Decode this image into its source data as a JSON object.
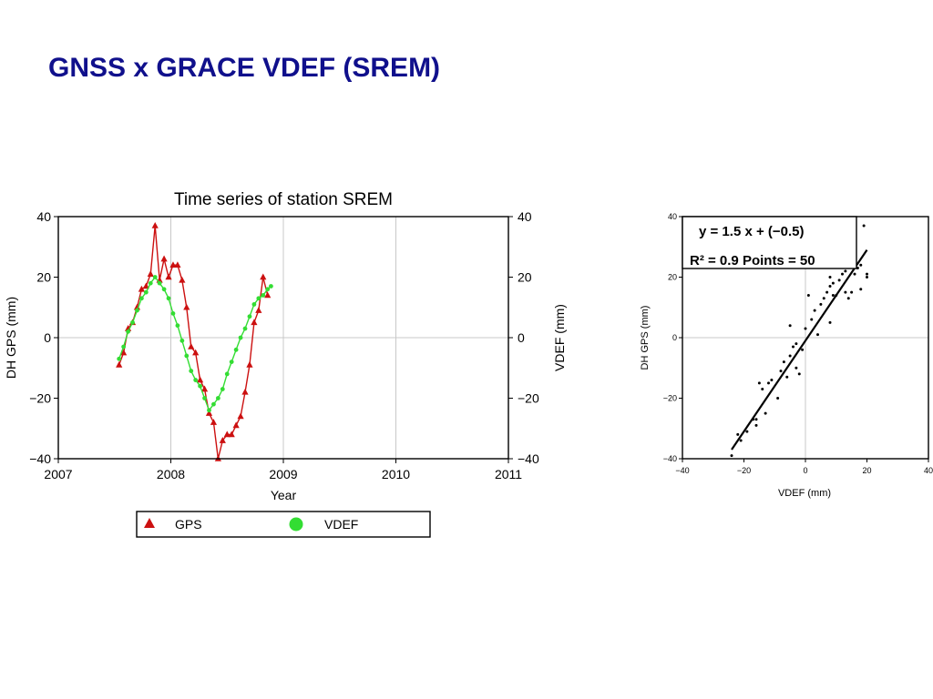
{
  "slide": {
    "title": "GNSS x GRACE VDEF (SREM)"
  },
  "chart_data": [
    {
      "type": "line",
      "title": "Time series of station SREM",
      "xlabel": "Year",
      "ylabel": "DH GPS (mm)",
      "ylabel_right": "VDEF  (mm)",
      "xlim": [
        2007,
        2011
      ],
      "ylim": [
        -40,
        40
      ],
      "xticks": [
        "2007",
        "2008",
        "2009",
        "2010",
        "2011"
      ],
      "yticks": [
        "40",
        "20",
        "0",
        "−20",
        "−40"
      ],
      "grid": true,
      "legend": {
        "position": "bottom",
        "entries": [
          "GPS",
          "VDEF"
        ]
      },
      "series": [
        {
          "name": "GPS",
          "marker": "triangle",
          "color": "#cc1010",
          "x": [
            2007.54,
            2007.58,
            2007.62,
            2007.66,
            2007.7,
            2007.74,
            2007.78,
            2007.82,
            2007.86,
            2007.9,
            2007.94,
            2007.98,
            2008.02,
            2008.06,
            2008.1,
            2008.14,
            2008.18,
            2008.22,
            2008.26,
            2008.3,
            2008.34,
            2008.38,
            2008.42,
            2008.46,
            2008.5,
            2008.54,
            2008.58,
            2008.62,
            2008.66,
            2008.7,
            2008.74,
            2008.78,
            2008.82,
            2008.86
          ],
          "y": [
            -9,
            -5,
            3,
            5,
            10,
            16,
            17,
            21,
            37,
            19,
            26,
            20,
            24,
            24,
            19,
            10,
            -3,
            -5,
            -14,
            -17,
            -25,
            -28,
            -40,
            -34,
            -32,
            -32,
            -29,
            -26,
            -18,
            -9,
            5,
            9,
            20,
            14
          ]
        },
        {
          "name": "VDEF",
          "marker": "circle",
          "color": "#33dd33",
          "x": [
            2007.54,
            2007.58,
            2007.62,
            2007.66,
            2007.7,
            2007.74,
            2007.78,
            2007.82,
            2007.86,
            2007.9,
            2007.94,
            2007.98,
            2008.02,
            2008.06,
            2008.1,
            2008.14,
            2008.18,
            2008.22,
            2008.26,
            2008.3,
            2008.34,
            2008.38,
            2008.42,
            2008.46,
            2008.5,
            2008.54,
            2008.58,
            2008.62,
            2008.66,
            2008.7,
            2008.74,
            2008.78,
            2008.82,
            2008.86,
            2008.89
          ],
          "y": [
            -7,
            -3,
            2,
            5,
            9,
            13,
            15,
            18,
            20,
            18,
            16,
            13,
            8,
            4,
            -1,
            -6,
            -11,
            -14,
            -16,
            -20,
            -24,
            -22,
            -20,
            -17,
            -12,
            -8,
            -4,
            0,
            3,
            7,
            11,
            13,
            14,
            16,
            17
          ]
        }
      ]
    },
    {
      "type": "scatter",
      "title": "",
      "xlabel": "VDEF  (mm)",
      "ylabel": "DH GPS (mm)",
      "xlim": [
        -40,
        40
      ],
      "ylim": [
        -40,
        40
      ],
      "xticks": [
        "−40",
        "−20",
        "0",
        "20",
        "40"
      ],
      "yticks": [
        "40",
        "20",
        "0",
        "−20",
        "−40"
      ],
      "grid": true,
      "annotation": {
        "equation": "y = 1.5 x + (−0.5)",
        "stats": "R² = 0.9  Points = 50"
      },
      "fit_line": {
        "x": [
          -24,
          20
        ],
        "y": [
          -37,
          29
        ]
      },
      "points": {
        "x": [
          -24,
          -22,
          -21,
          -19,
          -17,
          -16,
          -16,
          -15,
          -14,
          -13,
          -12,
          -11,
          -9,
          -8,
          -7,
          -6,
          -5,
          -5,
          -4,
          -3,
          -3,
          -2,
          -1,
          0,
          1,
          2,
          3,
          4,
          5,
          6,
          7,
          8,
          8,
          9,
          10,
          11,
          12,
          13,
          14,
          15,
          16,
          17,
          18,
          19,
          20,
          20,
          8,
          9,
          13,
          18
        ],
        "y": [
          -39,
          -32,
          -34,
          -31,
          -27,
          -29,
          -27,
          -15,
          -17,
          -25,
          -15,
          -14,
          -20,
          -11,
          -8,
          -13,
          -6,
          4,
          -3,
          -10,
          -2,
          -12,
          -4,
          3,
          14,
          6,
          9,
          1,
          11,
          13,
          15,
          20,
          5,
          18,
          14,
          19,
          21,
          22,
          13,
          15,
          21,
          23,
          24,
          37,
          21,
          20,
          17,
          14,
          15,
          16
        ]
      }
    }
  ],
  "colors": {
    "title": "#10108c",
    "gps": "#cc1010",
    "vdef": "#33dd33",
    "grid": "#c8c8c8"
  }
}
